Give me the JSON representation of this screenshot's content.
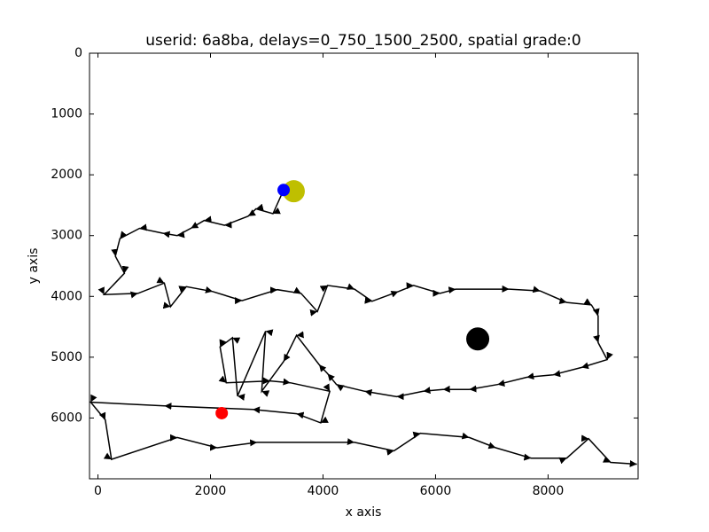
{
  "chart_data": [
    {
      "type": "line",
      "title": "userid: 6a8ba, delays=0_750_1500_2500, spatial grade:0",
      "xlabel": "x axis",
      "ylabel": "y axis",
      "xlim": [
        -150,
        9600
      ],
      "ylim": [
        0,
        7000
      ],
      "y_inverted": true,
      "xticks": [
        0,
        2000,
        4000,
        6000,
        8000
      ],
      "yticks": [
        0,
        1000,
        2000,
        3000,
        4000,
        5000,
        6000
      ],
      "color": "#000000",
      "x": [
        3300,
        3110,
        2810,
        2670,
        2250,
        1890,
        1650,
        1410,
        1150,
        740,
        390,
        310,
        470,
        110,
        710,
        1180,
        1290,
        1570,
        2040,
        2560,
        3190,
        3610,
        3900,
        4080,
        4560,
        4870,
        5340,
        5610,
        6080,
        6360,
        7310,
        7860,
        8330,
        8770,
        8890,
        8890,
        9050,
        8590,
        8090,
        7620,
        7100,
        6600,
        6130,
        5780,
        5310,
        4740,
        4240,
        4080,
        3930,
        3530,
        3300,
        2910,
        2980,
        2480,
        2390,
        2170,
        2280,
        3060,
        3420,
        4120,
        3960,
        3530,
        2750,
        1180,
        -130,
        130,
        240,
        1410,
        2120,
        2830,
        4560,
        5260,
        5730,
        6600,
        7070,
        7700,
        8330,
        8720,
        9110,
        9580
      ],
      "y": [
        2250,
        2640,
        2560,
        2680,
        2830,
        2750,
        2880,
        3000,
        2960,
        2880,
        3050,
        3340,
        3620,
        3970,
        3950,
        3780,
        4170,
        3840,
        3920,
        4070,
        3890,
        3950,
        4250,
        3820,
        3880,
        4080,
        3920,
        3820,
        3950,
        3880,
        3880,
        3910,
        4100,
        4140,
        4320,
        4760,
        5040,
        5170,
        5290,
        5330,
        5450,
        5530,
        5530,
        5560,
        5650,
        5560,
        5450,
        5270,
        5120,
        4640,
        5070,
        5560,
        4570,
        5640,
        4680,
        4830,
        5420,
        5390,
        5420,
        5560,
        6080,
        5930,
        5860,
        5800,
        5740,
        6030,
        6680,
        6320,
        6490,
        6400,
        6400,
        6540,
        6250,
        6320,
        6490,
        6660,
        6660,
        6340,
        6730,
        6760
      ]
    },
    {
      "type": "scatter",
      "x": [
        3480,
        3300,
        2200,
        6750
      ],
      "y": [
        2270,
        2250,
        5920,
        4700
      ],
      "colors": [
        "#bfbf00",
        "#0000ff",
        "#ff0000",
        "#000000"
      ]
    }
  ]
}
